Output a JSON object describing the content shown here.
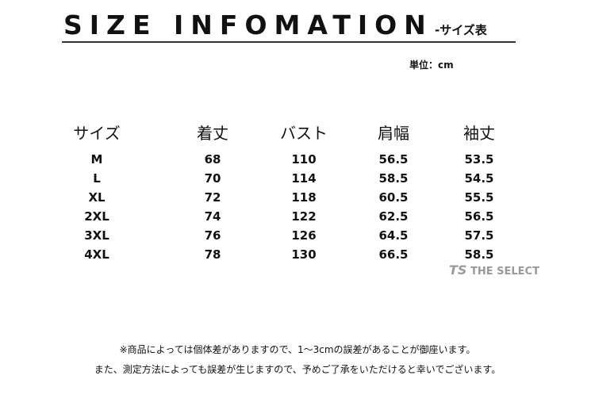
{
  "title": "SIZE INFOMATION",
  "subtitle": "-サイズ表",
  "unit": "単位：cm",
  "headers": [
    "サイズ",
    "着丈",
    "バスト",
    "肩幅",
    "袖丈"
  ],
  "rows": [
    [
      "M",
      "68",
      "110",
      "56.5",
      "53.5"
    ],
    [
      "L",
      "70",
      "114",
      "58.5",
      "54.5"
    ],
    [
      "XL",
      "72",
      "118",
      "60.5",
      "55.5"
    ],
    [
      "2XL",
      "74",
      "122",
      "62.5",
      "56.5"
    ],
    [
      "3XL",
      "76",
      "126",
      "64.5",
      "57.5"
    ],
    [
      "4XL",
      "78",
      "130",
      "66.5",
      "58.5"
    ]
  ],
  "watermark": "THE SELECT",
  "watermark_mark": "TS",
  "notes": [
    "※商品によっては個体差がありますので、1～3cmの誤差があることが御座います。",
    "また、測定方法によっても誤差が生じますので、予めご了承をいただけると幸いでございます。"
  ]
}
